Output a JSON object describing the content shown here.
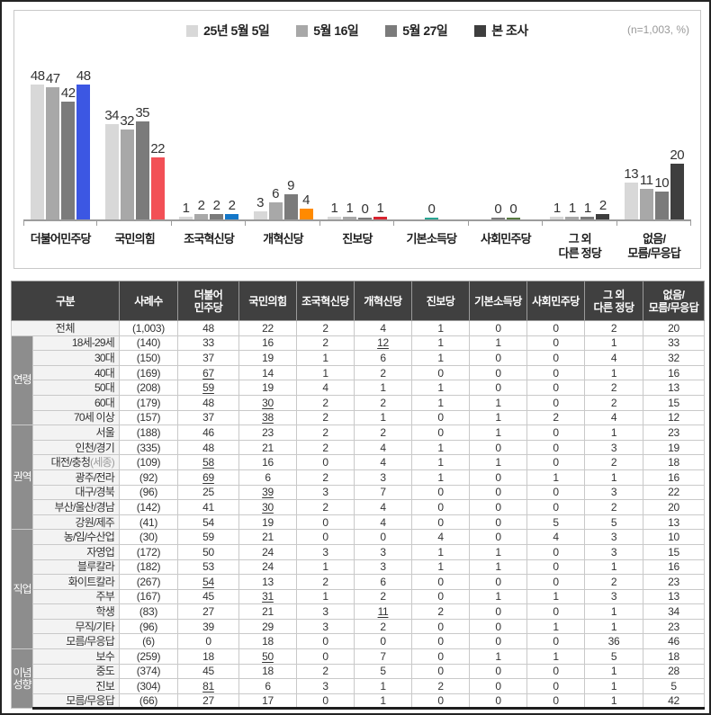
{
  "meta": {
    "n_label": "(n=1,003, %)"
  },
  "chart_data": {
    "type": "bar",
    "unit": "%",
    "sample_note": "(n=1,003, %)",
    "legend_position": "top",
    "ylim": [
      0,
      55
    ],
    "grid": false,
    "series_labels": [
      "25년 5월 5일",
      "5월 16일",
      "5월 27일",
      "본 조사"
    ],
    "wave_colors": [
      "#d8d8d8",
      "#a8a8a8",
      "#7b7b7b",
      "#3e3e3e"
    ],
    "categories": [
      "더불어민주당",
      "국민의힘",
      "조국혁신당",
      "개혁신당",
      "진보당",
      "기본소득당",
      "사회민주당",
      "그 외 다른 정당",
      "없음/모름/무응답"
    ],
    "category_labels_display": [
      [
        "더불어민주당"
      ],
      [
        "국민의힘"
      ],
      [
        "조국혁신당"
      ],
      [
        "개혁신당"
      ],
      [
        "진보당"
      ],
      [
        "기본소득당"
      ],
      [
        "사회민주당"
      ],
      [
        "그 외",
        "다른 정당"
      ],
      [
        "없음/",
        "모름/무응답"
      ]
    ],
    "series": [
      {
        "name": "25년 5월 5일",
        "values": [
          48,
          34,
          1,
          3,
          1,
          null,
          null,
          1,
          13
        ]
      },
      {
        "name": "5월 16일",
        "values": [
          47,
          32,
          2,
          6,
          1,
          null,
          null,
          1,
          11
        ]
      },
      {
        "name": "5월 27일",
        "values": [
          42,
          35,
          2,
          9,
          0,
          null,
          0,
          1,
          10
        ]
      },
      {
        "name": "본 조사",
        "values": [
          48,
          22,
          2,
          4,
          1,
          0,
          0,
          2,
          20
        ]
      }
    ],
    "final_bar_colors": [
      "#3c57e3",
      "#f25056",
      "#1477c8",
      "#ff8a00",
      "#d8232f",
      "#28a593",
      "#56793f",
      "#3e3e3e",
      "#3e3e3e"
    ]
  },
  "table": {
    "columns": [
      [
        "구분"
      ],
      [
        "사례수"
      ],
      [
        "더불어",
        "민주당"
      ],
      [
        "국민의힘"
      ],
      [
        "조국혁신당"
      ],
      [
        "개혁신당"
      ],
      [
        "진보당"
      ],
      [
        "기본소득당"
      ],
      [
        "사회민주당"
      ],
      [
        "그 외",
        "다른 정당"
      ],
      [
        "없음/",
        "모름/무응답"
      ]
    ],
    "total_row": {
      "label": "전체",
      "n": "(1,003)",
      "values": [
        48,
        22,
        2,
        4,
        1,
        0,
        0,
        2,
        20
      ],
      "underline": []
    },
    "sections": [
      {
        "name": "연령",
        "rows": [
          {
            "label": "18세-29세",
            "n": "(140)",
            "values": [
              33,
              16,
              2,
              12,
              1,
              1,
              0,
              1,
              33
            ],
            "underline": [
              3
            ]
          },
          {
            "label": "30대",
            "n": "(150)",
            "values": [
              37,
              19,
              1,
              6,
              1,
              0,
              0,
              4,
              32
            ],
            "underline": []
          },
          {
            "label": "40대",
            "n": "(169)",
            "values": [
              67,
              14,
              1,
              2,
              0,
              0,
              0,
              1,
              16
            ],
            "underline": [
              0
            ]
          },
          {
            "label": "50대",
            "n": "(208)",
            "values": [
              59,
              19,
              4,
              1,
              1,
              0,
              0,
              2,
              13
            ],
            "underline": [
              0
            ]
          },
          {
            "label": "60대",
            "n": "(179)",
            "values": [
              48,
              30,
              2,
              2,
              1,
              1,
              0,
              2,
              15
            ],
            "underline": [
              1
            ]
          },
          {
            "label": "70세 이상",
            "n": "(157)",
            "values": [
              37,
              38,
              2,
              1,
              0,
              1,
              2,
              4,
              12
            ],
            "underline": [
              1
            ]
          }
        ]
      },
      {
        "name": "권역",
        "rows": [
          {
            "label": "서울",
            "n": "(188)",
            "values": [
              46,
              23,
              2,
              2,
              0,
              1,
              0,
              1,
              23
            ],
            "underline": []
          },
          {
            "label": "인천/경기",
            "n": "(335)",
            "values": [
              48,
              21,
              2,
              4,
              1,
              0,
              0,
              3,
              19
            ],
            "underline": []
          },
          {
            "label": "대전/충청",
            "suffix": "(세종)",
            "n": "(109)",
            "values": [
              58,
              16,
              0,
              4,
              1,
              1,
              0,
              2,
              18
            ],
            "underline": [
              0
            ]
          },
          {
            "label": "광주/전라",
            "n": "(92)",
            "values": [
              69,
              6,
              2,
              3,
              1,
              0,
              1,
              1,
              16
            ],
            "underline": [
              0
            ]
          },
          {
            "label": "대구/경북",
            "n": "(96)",
            "values": [
              25,
              39,
              3,
              7,
              0,
              0,
              0,
              3,
              22
            ],
            "underline": [
              1
            ]
          },
          {
            "label": "부산/울산/경남",
            "n": "(142)",
            "values": [
              41,
              30,
              2,
              4,
              0,
              0,
              0,
              2,
              20
            ],
            "underline": [
              1
            ]
          },
          {
            "label": "강원/제주",
            "n": "(41)",
            "values": [
              54,
              19,
              0,
              4,
              0,
              0,
              5,
              5,
              13
            ],
            "underline": []
          }
        ]
      },
      {
        "name": "직업",
        "rows": [
          {
            "label": "농/임/수산업",
            "n": "(30)",
            "values": [
              59,
              21,
              0,
              0,
              4,
              0,
              4,
              3,
              10
            ],
            "underline": []
          },
          {
            "label": "자영업",
            "n": "(172)",
            "values": [
              50,
              24,
              3,
              3,
              1,
              1,
              0,
              3,
              15
            ],
            "underline": []
          },
          {
            "label": "블루칼라",
            "n": "(182)",
            "values": [
              53,
              24,
              1,
              3,
              1,
              1,
              0,
              1,
              16
            ],
            "underline": []
          },
          {
            "label": "화이트칼라",
            "n": "(267)",
            "values": [
              54,
              13,
              2,
              6,
              0,
              0,
              0,
              2,
              23
            ],
            "underline": [
              0
            ]
          },
          {
            "label": "주부",
            "n": "(167)",
            "values": [
              45,
              31,
              1,
              2,
              0,
              1,
              1,
              3,
              13
            ],
            "underline": [
              1
            ]
          },
          {
            "label": "학생",
            "n": "(83)",
            "values": [
              27,
              21,
              3,
              11,
              2,
              0,
              0,
              1,
              34
            ],
            "underline": [
              3
            ]
          },
          {
            "label": "무직/기타",
            "n": "(96)",
            "values": [
              39,
              29,
              3,
              2,
              0,
              0,
              1,
              1,
              23
            ],
            "underline": []
          },
          {
            "label": "모름/무응답",
            "n": "(6)",
            "values": [
              0,
              18,
              0,
              0,
              0,
              0,
              0,
              36,
              46
            ],
            "underline": []
          }
        ]
      },
      {
        "name": "이념 성향",
        "rows": [
          {
            "label": "보수",
            "n": "(259)",
            "values": [
              18,
              50,
              0,
              7,
              0,
              1,
              1,
              5,
              18
            ],
            "underline": [
              1
            ]
          },
          {
            "label": "중도",
            "n": "(374)",
            "values": [
              45,
              18,
              2,
              5,
              0,
              0,
              0,
              1,
              28
            ],
            "underline": []
          },
          {
            "label": "진보",
            "n": "(304)",
            "values": [
              81,
              6,
              3,
              1,
              2,
              0,
              0,
              1,
              5
            ],
            "underline": [
              0
            ]
          },
          {
            "label": "모름/무응답",
            "n": "(66)",
            "values": [
              27,
              17,
              0,
              1,
              0,
              0,
              0,
              1,
              42
            ],
            "underline": []
          }
        ]
      }
    ]
  }
}
